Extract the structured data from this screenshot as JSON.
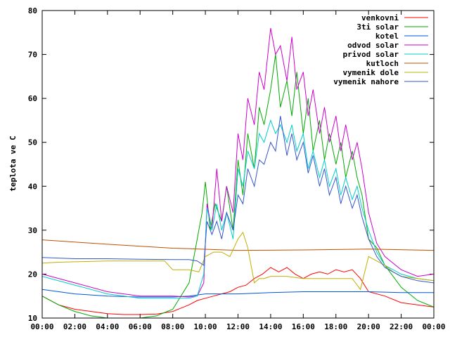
{
  "chart_data": {
    "type": "line",
    "ylabel": "teplota ve C",
    "xlabel": "",
    "ylim": [
      10,
      80
    ],
    "yticks": [
      10,
      20,
      30,
      40,
      50,
      60,
      70,
      80
    ],
    "xlim": [
      0,
      24
    ],
    "xticks": [
      0,
      2,
      4,
      6,
      8,
      10,
      12,
      14,
      16,
      18,
      20,
      22,
      24
    ],
    "xtick_labels": [
      "00:00",
      "02:00",
      "04:00",
      "06:00",
      "08:00",
      "10:00",
      "12:00",
      "14:00",
      "16:00",
      "18:00",
      "20:00",
      "22:00",
      "00:00"
    ],
    "grid": false,
    "legend_position": "top-right",
    "series": [
      {
        "name": "venkovni",
        "color": "#ff0000",
        "x": [
          0,
          1,
          2,
          3,
          4,
          5,
          6,
          7,
          8,
          9,
          9.5,
          10,
          10.5,
          11,
          11.5,
          12,
          12.5,
          13,
          13.5,
          14,
          14.5,
          15,
          15.5,
          16,
          16.5,
          17,
          17.5,
          18,
          18.5,
          19,
          19.5,
          20,
          21,
          22,
          23,
          24
        ],
        "y": [
          15,
          13,
          12,
          11.5,
          11,
          10.8,
          10.8,
          10.9,
          11.5,
          13,
          14,
          14.5,
          15,
          15.5,
          16,
          17,
          17.5,
          19,
          20,
          21.5,
          20.5,
          21.5,
          20,
          19,
          20,
          20.5,
          20,
          21,
          20.5,
          21,
          19,
          16,
          15,
          13.5,
          13,
          12.5
        ]
      },
      {
        "name": "3ti solar",
        "color": "#00aa00",
        "x": [
          0,
          1,
          2,
          3,
          4,
          5,
          6,
          7,
          8,
          9,
          9.5,
          9.8,
          10,
          10.3,
          10.6,
          11,
          11.3,
          11.7,
          12,
          12.3,
          12.6,
          13,
          13.3,
          13.6,
          14,
          14.3,
          14.6,
          15,
          15.3,
          15.6,
          16,
          16.3,
          16.6,
          17,
          17.3,
          17.6,
          18,
          18.3,
          18.6,
          19,
          19.3,
          19.6,
          20,
          20.5,
          21,
          22,
          23,
          24
        ],
        "y": [
          15,
          13,
          11.5,
          10.5,
          10,
          10,
          10,
          10.5,
          12,
          18,
          28,
          34,
          41,
          30,
          36,
          32,
          40,
          30,
          46,
          38,
          52,
          44,
          58,
          54,
          62,
          70,
          58,
          64,
          56,
          66,
          52,
          60,
          48,
          55,
          46,
          52,
          45,
          50,
          42,
          48,
          42,
          38,
          28,
          26,
          22,
          17,
          14,
          12.5
        ]
      },
      {
        "name": "kotel",
        "color": "#0055dd",
        "x": [
          0,
          2,
          4,
          6,
          8,
          9,
          10,
          12,
          14,
          16,
          18,
          20,
          22,
          24
        ],
        "y": [
          16.5,
          15.5,
          15,
          14.8,
          14.8,
          15,
          15.5,
          15.5,
          15.8,
          16,
          16,
          16,
          15.8,
          15.8
        ]
      },
      {
        "name": "odvod solar",
        "color": "#cc00cc",
        "x": [
          0,
          2,
          4,
          6,
          8,
          9,
          9.5,
          9.9,
          10.1,
          10.4,
          10.7,
          11,
          11.3,
          11.7,
          12,
          12.3,
          12.6,
          13,
          13.3,
          13.6,
          14,
          14.3,
          14.6,
          15,
          15.3,
          15.6,
          16,
          16.3,
          16.6,
          17,
          17.3,
          17.6,
          18,
          18.3,
          18.6,
          19,
          19.3,
          19.6,
          20,
          20.5,
          21,
          22,
          23,
          24
        ],
        "y": [
          20,
          18,
          16,
          15,
          15,
          14.8,
          15,
          18,
          36,
          30,
          44,
          32,
          40,
          34,
          52,
          46,
          60,
          54,
          66,
          62,
          76,
          70,
          72,
          64,
          74,
          62,
          66,
          56,
          62,
          52,
          58,
          50,
          56,
          48,
          54,
          46,
          50,
          44,
          34,
          27,
          24,
          21,
          19.5,
          20
        ]
      },
      {
        "name": "privod solar",
        "color": "#00cccc",
        "x": [
          0,
          2,
          4,
          6,
          8,
          9,
          9.5,
          9.9,
          10.1,
          10.4,
          10.7,
          11,
          11.3,
          11.7,
          12,
          12.3,
          12.6,
          13,
          13.3,
          13.6,
          14,
          14.3,
          14.6,
          15,
          15.3,
          15.6,
          16,
          16.3,
          16.6,
          17,
          17.3,
          17.6,
          18,
          18.3,
          18.6,
          19,
          19.3,
          19.6,
          20,
          20.5,
          21,
          22,
          23,
          24
        ],
        "y": [
          19.5,
          17.5,
          15.5,
          14.5,
          14.5,
          14.5,
          15,
          20,
          35,
          30,
          36,
          30,
          34,
          28,
          44,
          40,
          48,
          44,
          52,
          50,
          55,
          52,
          54,
          50,
          54,
          48,
          52,
          44,
          48,
          42,
          46,
          40,
          44,
          38,
          42,
          37,
          40,
          35,
          30,
          25,
          22,
          20,
          19,
          18.5
        ]
      },
      {
        "name": "kutloch",
        "color": "#c05000",
        "x": [
          0,
          4,
          8,
          12,
          16,
          20,
          24
        ],
        "y": [
          27.8,
          26.8,
          25.9,
          25.4,
          25.5,
          25.7,
          25.4
        ]
      },
      {
        "name": "vymenik dole",
        "color": "#c0b000",
        "x": [
          0,
          1,
          2,
          4,
          6,
          7.5,
          8,
          9,
          9.6,
          10,
          10.5,
          11,
          11.5,
          12,
          12.3,
          12.6,
          13,
          13.3,
          13.6,
          14,
          15,
          16,
          17,
          18,
          19,
          19.5,
          20,
          20.5,
          21,
          21.5,
          22,
          23,
          24
        ],
        "y": [
          22.5,
          22.7,
          22.8,
          23,
          23,
          23,
          21,
          21,
          20.5,
          24,
          25,
          25,
          24,
          28,
          29.5,
          26,
          18,
          19,
          19,
          19.5,
          19.5,
          19,
          19,
          19,
          19,
          16.5,
          24,
          23,
          22,
          20.5,
          19.5,
          19,
          18.5
        ]
      },
      {
        "name": "vymenik nahore",
        "color": "#3355cc",
        "x": [
          0,
          2,
          4,
          6,
          8,
          9,
          9.5,
          9.9,
          10.1,
          10.4,
          10.7,
          11,
          11.3,
          11.7,
          12,
          12.3,
          12.6,
          13,
          13.3,
          13.6,
          14,
          14.3,
          14.6,
          15,
          15.3,
          15.6,
          16,
          16.3,
          16.6,
          17,
          17.3,
          17.6,
          18,
          18.3,
          18.6,
          19,
          19.3,
          19.6,
          20,
          20.5,
          21,
          22,
          23,
          24
        ],
        "y": [
          23.8,
          23.5,
          23.5,
          23.4,
          23.3,
          23.3,
          23,
          22,
          32,
          29,
          32,
          28,
          34,
          30,
          38,
          36,
          44,
          40,
          46,
          45,
          50,
          48,
          56,
          47,
          52,
          46,
          50,
          43,
          47,
          40,
          44,
          38,
          42,
          36,
          40,
          35,
          38,
          33,
          28,
          24,
          21.5,
          19.5,
          18.5,
          18
        ]
      }
    ]
  }
}
